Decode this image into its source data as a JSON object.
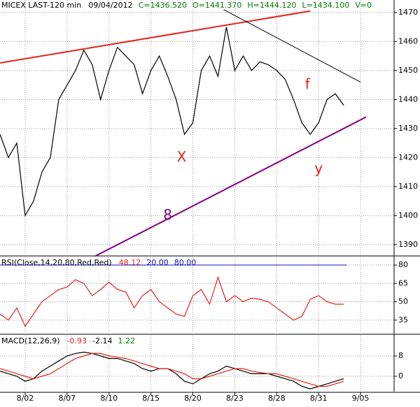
{
  "chart_data": [
    {
      "type": "line",
      "title": "MICEX LAST-120 min",
      "date": "09/04/2012",
      "stats": [
        "C=1436.520",
        "O=1441.370",
        "H=1444.120",
        "L=1434.100",
        "V=0"
      ],
      "x": [
        0,
        3,
        6,
        9,
        12,
        15,
        18,
        21,
        24,
        27,
        30,
        33,
        36,
        39,
        42,
        45,
        48,
        51,
        54,
        57,
        60,
        63,
        66,
        69,
        72,
        75,
        78,
        81,
        84,
        87,
        90,
        93,
        96,
        99,
        102,
        105,
        108,
        111,
        114,
        117,
        120,
        123
      ],
      "series": [
        {
          "color": "#000000",
          "values": [
            1428,
            1420,
            1425,
            1400,
            1405,
            1415,
            1420,
            1440,
            1445,
            1450,
            1457,
            1452,
            1440,
            1450,
            1458,
            1455,
            1452,
            1442,
            1450,
            1455,
            1448,
            1440,
            1428,
            1432,
            1450,
            1455,
            1448,
            1465,
            1450,
            1455,
            1450,
            1453,
            1452,
            1450,
            1447,
            1440,
            1432,
            1428,
            1432,
            1440,
            1442,
            1438
          ]
        }
      ],
      "trend_lines": [
        {
          "color": "#e8201a",
          "x": [
            0,
            111
          ],
          "y": [
            1452.6,
            1470.5
          ]
        },
        {
          "color": "#800080",
          "x": [
            34,
            131
          ],
          "y": [
            1386,
            1434
          ]
        },
        {
          "color": "#000000",
          "x": [
            80,
            129
          ],
          "y": [
            1471,
            1446
          ]
        }
      ],
      "annotations": [
        {
          "text": "X",
          "x": 65,
          "y": 1420,
          "color": "#e8201a"
        },
        {
          "text": "y",
          "x": 114,
          "y": 1416,
          "color": "#e8201a"
        },
        {
          "text": "f",
          "x": 110,
          "y": 1445,
          "color": "#e8201a"
        },
        {
          "text": "8",
          "x": 60,
          "y": 1400,
          "color": "#800080"
        }
      ],
      "xlim": [
        0,
        141
      ],
      "ylim": [
        1386.1,
        1474.3
      ],
      "yticks": [
        1390,
        1400,
        1410,
        1420,
        1430,
        1440,
        1450,
        1460,
        1470
      ],
      "grid": true
    },
    {
      "type": "line",
      "title": "RSI(Close,14,20,80,Red,Red)",
      "stats": [
        "48.12",
        "20.00",
        "80.00"
      ],
      "stat_colors": [
        "#e8201a",
        "#1010c0",
        "#1010c0"
      ],
      "x": [
        0,
        3,
        6,
        9,
        12,
        15,
        18,
        21,
        24,
        27,
        30,
        33,
        36,
        39,
        42,
        45,
        48,
        51,
        54,
        57,
        60,
        63,
        66,
        69,
        72,
        75,
        78,
        81,
        84,
        87,
        90,
        93,
        96,
        99,
        102,
        105,
        108,
        111,
        114,
        117,
        120,
        123
      ],
      "series": [
        {
          "color": "#e8201a",
          "values": [
            40,
            35,
            45,
            30,
            40,
            50,
            55,
            60,
            62,
            68,
            65,
            55,
            60,
            66,
            60,
            58,
            45,
            55,
            60,
            50,
            45,
            40,
            38,
            55,
            60,
            48,
            70,
            50,
            55,
            50,
            53,
            52,
            50,
            45,
            40,
            35,
            38,
            52,
            55,
            50,
            48,
            48
          ]
        }
      ],
      "levels": [
        80,
        20
      ],
      "xlim": [
        0,
        141
      ],
      "ylim": [
        24.6,
        86.3
      ],
      "yticks": [
        35,
        50,
        65,
        80
      ],
      "grid": true
    },
    {
      "type": "line",
      "title": "MACD(12,26,9)",
      "stats": [
        "-0.93",
        "-2.14",
        "1.22"
      ],
      "stat_colors": [
        "#e8201a",
        "#000000",
        "#008000"
      ],
      "x": [
        0,
        3,
        6,
        9,
        12,
        15,
        18,
        21,
        24,
        27,
        30,
        33,
        36,
        39,
        42,
        45,
        48,
        51,
        54,
        57,
        60,
        63,
        66,
        69,
        72,
        75,
        78,
        81,
        84,
        87,
        90,
        93,
        96,
        99,
        102,
        105,
        108,
        111,
        114,
        117,
        120,
        123
      ],
      "series": [
        {
          "color": "#000000",
          "values": [
            2,
            1,
            0,
            -2,
            -1,
            2,
            4,
            6,
            8,
            9,
            9.5,
            9,
            8,
            7,
            7,
            6,
            5,
            3,
            2,
            3,
            3,
            1,
            -2,
            -3,
            -1,
            1,
            2,
            4,
            3,
            2,
            1,
            1,
            1,
            0,
            -1,
            -2,
            -4,
            -5,
            -4,
            -3,
            -2,
            -1
          ]
        },
        {
          "color": "#e8201a",
          "values": [
            3,
            2,
            1,
            0,
            -1,
            0,
            1,
            3,
            5,
            7,
            8,
            9,
            9,
            8,
            7.5,
            7,
            6,
            5,
            4,
            3,
            3,
            2,
            1,
            -1,
            -1,
            0,
            1,
            2,
            3,
            3,
            2,
            1.5,
            1,
            1,
            0,
            -1,
            -2,
            -3,
            -4,
            -4,
            -3,
            -2
          ]
        }
      ],
      "xlim": [
        0,
        141
      ],
      "ylim": [
        -6.07,
        16
      ],
      "yticks": [
        0,
        8
      ],
      "grid": true,
      "xticks": [
        {
          "value": 9,
          "label": "8/02"
        },
        {
          "value": 24,
          "label": "8/07"
        },
        {
          "value": 39,
          "label": "8/10"
        },
        {
          "value": 54,
          "label": "8/15"
        },
        {
          "value": 69,
          "label": "8/20"
        },
        {
          "value": 84,
          "label": "8/23"
        },
        {
          "value": 99,
          "label": "8/28"
        },
        {
          "value": 114,
          "label": "8/31"
        },
        {
          "value": 129,
          "label": "9/05"
        }
      ]
    }
  ]
}
